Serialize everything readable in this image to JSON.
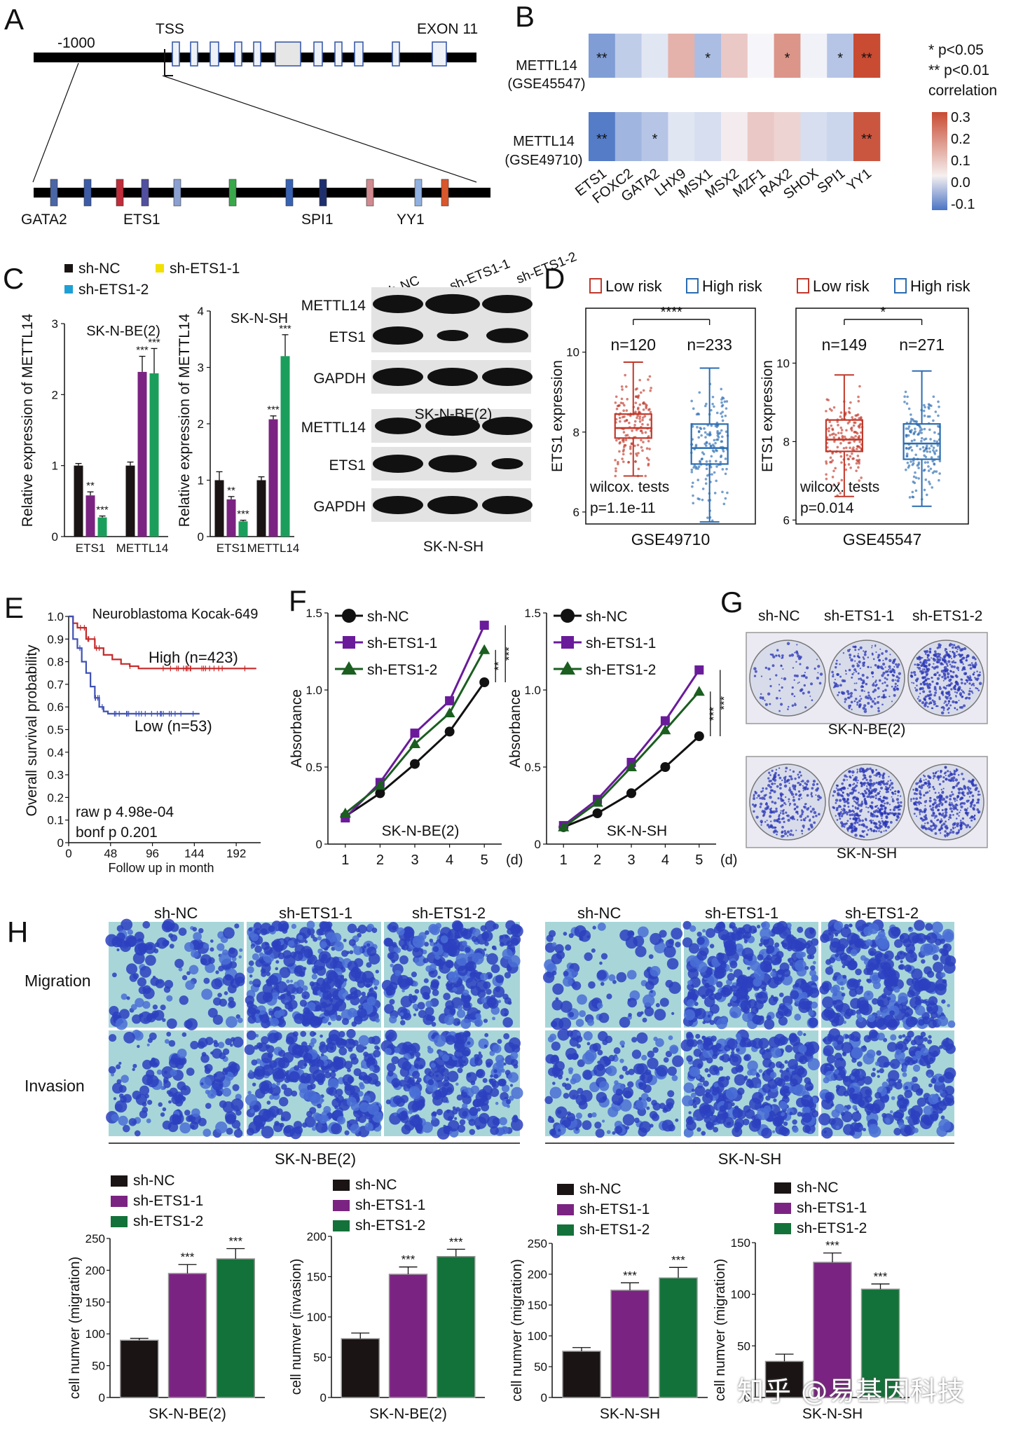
{
  "panels": {
    "A": {
      "label": "A",
      "pos_label": "-1000",
      "tss": "TSS",
      "exon": "EXON 11",
      "sites": [
        "GATA2",
        "ETS1",
        "SPI1",
        "YY1"
      ]
    },
    "B": {
      "label": "B",
      "rows": [
        "METTL14 (GSE45547)",
        "METTL14 (GSE49710)"
      ],
      "cols": [
        "ETS1",
        "FOXC2",
        "GATA2",
        "LHX9",
        "MSX1",
        "MSX2",
        "MZF1",
        "RAX2",
        "SHOX",
        "SPI1",
        "YY1"
      ],
      "values": [
        [
          -0.11,
          -0.05,
          -0.02,
          0.12,
          -0.07,
          0.08,
          0.0,
          0.17,
          -0.005,
          -0.06,
          0.3
        ],
        [
          -0.15,
          -0.08,
          -0.06,
          -0.02,
          -0.03,
          0.02,
          0.08,
          0.06,
          -0.03,
          -0.04,
          0.28
        ]
      ],
      "stars": [
        [
          "**",
          "",
          "",
          "",
          "*",
          "",
          "",
          "*",
          "",
          "*",
          "**"
        ],
        [
          "**",
          "",
          "*",
          "",
          "",
          "",
          "",
          "",
          "",
          "",
          "**"
        ]
      ],
      "legend": [
        "*  p<0.05",
        "** p<0.01",
        "correlation"
      ],
      "scale_ticks": [
        "0.3",
        "0.2",
        "0.1",
        "0.0",
        "-0.1"
      ]
    },
    "C": {
      "label": "C",
      "legend": [
        "sh-NC",
        "sh-ETS1-1",
        "sh-ETS1-2"
      ],
      "ylabel": "Relative expression of METTL14",
      "blot_lanes": [
        "sh-NC",
        "sh-ETS1-1",
        "sh-ETS1-2"
      ],
      "blot_rows": [
        "METTL14",
        "ETS1",
        "GAPDH",
        "METTL14",
        "ETS1",
        "GAPDH"
      ],
      "blot_cells": [
        "SK-N-BE(2)",
        "SK-N-SH"
      ]
    },
    "D": {
      "label": "D",
      "legend": [
        "Low risk",
        "High risk"
      ],
      "ylabel": "ETS1 expression",
      "test": "wilcox. tests"
    },
    "E": {
      "label": "E"
    },
    "F": {
      "label": "F"
    },
    "G": {
      "label": "G",
      "headers": [
        "sh-NC",
        "sh-ETS1-1",
        "sh-ETS1-2"
      ],
      "cells": [
        "SK-N-BE(2)",
        "SK-N-SH"
      ]
    },
    "H": {
      "label": "H",
      "headers": [
        "sh-NC",
        "sh-ETS1-1",
        "sh-ETS1-2"
      ],
      "rows": [
        "Migration",
        "Invasion"
      ],
      "cells": [
        "SK-N-BE(2)",
        "SK-N-SH"
      ]
    }
  },
  "colors": {
    "nc": "#1a1414",
    "ets1_1": "#7b2382",
    "ets1_2": "#137239",
    "ets1_2_c": "#1b9e5b",
    "low_risk": "#c0392b",
    "high_risk": "#2b6cb0",
    "km_high": "#c62828",
    "km_low": "#3f51b5",
    "line_nc": "#111111",
    "line_1": "#6a1b9a",
    "line_2": "#1b5e20",
    "heat_neg": "#4a74c4",
    "heat_pos": "#c84b32",
    "crystal": "#2a35b5",
    "well_bg": "#d8dcea"
  },
  "chart_data": [
    {
      "id": "C-left",
      "type": "bar",
      "title": "SK-N-BE(2)",
      "ylabel": "Relative expression of METTL14",
      "categories": [
        "ETS1",
        "METTL14"
      ],
      "series": [
        {
          "name": "sh-NC",
          "values": [
            1.0,
            1.0
          ],
          "err": [
            0.03,
            0.05
          ]
        },
        {
          "name": "sh-ETS1-1",
          "values": [
            0.58,
            2.32
          ],
          "err": [
            0.05,
            0.22
          ]
        },
        {
          "name": "sh-ETS1-2",
          "values": [
            0.27,
            2.3
          ],
          "err": [
            0.02,
            0.35
          ]
        }
      ],
      "stars": [
        [
          "",
          "**",
          "***"
        ],
        [
          "",
          "***",
          "***"
        ]
      ],
      "ylim": [
        0,
        3
      ],
      "yticks": [
        "0",
        "1",
        "2",
        "3"
      ]
    },
    {
      "id": "C-right",
      "type": "bar",
      "title": "SK-N-SH",
      "ylabel": "Relative expression of METTL14",
      "categories": [
        "ETS1",
        "METTL14"
      ],
      "series": [
        {
          "name": "sh-NC",
          "values": [
            1.0,
            1.0
          ],
          "err": [
            0.15,
            0.06
          ]
        },
        {
          "name": "sh-ETS1-1",
          "values": [
            0.66,
            2.08
          ],
          "err": [
            0.05,
            0.06
          ]
        },
        {
          "name": "sh-ETS1-2",
          "values": [
            0.27,
            3.2
          ],
          "err": [
            0.02,
            0.38
          ]
        }
      ],
      "stars": [
        [
          "",
          "**",
          "***"
        ],
        [
          "",
          "***",
          "***"
        ]
      ],
      "ylim": [
        0,
        4
      ],
      "yticks": [
        "0",
        "1",
        "2",
        "3",
        "4"
      ]
    },
    {
      "id": "D-left",
      "type": "box",
      "xlabel": "GSE49710",
      "ylabel": "ETS1 expression",
      "groups": [
        {
          "name": "Low risk",
          "n": "n=120",
          "q1": 7.85,
          "median": 8.1,
          "q3": 8.45,
          "wlo": 6.9,
          "whi": 9.75
        },
        {
          "name": "High risk",
          "n": "n=233",
          "q1": 7.2,
          "median": 7.6,
          "q3": 8.2,
          "wlo": 5.75,
          "whi": 9.6
        }
      ],
      "ylim": [
        5.7,
        11.1
      ],
      "yticks": [
        "6",
        "8",
        "10"
      ],
      "sig": "****",
      "p": "p=1.1e-11"
    },
    {
      "id": "D-right",
      "type": "box",
      "xlabel": "GSE45547",
      "ylabel": "ETS1 expression",
      "groups": [
        {
          "name": "Low risk",
          "n": "n=149",
          "q1": 7.75,
          "median": 8.05,
          "q3": 8.55,
          "wlo": 6.6,
          "whi": 9.7
        },
        {
          "name": "High risk",
          "n": "n=271",
          "q1": 7.55,
          "median": 7.95,
          "q3": 8.45,
          "wlo": 6.35,
          "whi": 9.8
        }
      ],
      "ylim": [
        5.9,
        11.4
      ],
      "yticks": [
        "6",
        "8",
        "10"
      ],
      "sig": "*",
      "p": "p=0.014"
    },
    {
      "id": "E",
      "type": "line",
      "title": "Neuroblastoma Kocak-649",
      "ylabel": "Overall survival probability",
      "xlabel": "Follow up in month",
      "xticks": [
        "0",
        "48",
        "96",
        "144",
        "192"
      ],
      "yticks": [
        "0",
        "0.1",
        "0.2",
        "0.3",
        "0.4",
        "0.5",
        "0.6",
        "0.7",
        "0.8",
        "0.9",
        "1.0"
      ],
      "xlim": [
        0,
        220
      ],
      "ylim": [
        0,
        1
      ],
      "series": [
        {
          "name": "High (n=423)",
          "x": [
            0,
            5,
            10,
            20,
            30,
            40,
            50,
            60,
            70,
            80,
            90,
            100,
            120,
            150,
            180,
            200,
            215
          ],
          "y": [
            1.0,
            0.97,
            0.95,
            0.9,
            0.86,
            0.83,
            0.81,
            0.79,
            0.78,
            0.77,
            0.77,
            0.77,
            0.77,
            0.77,
            0.77,
            0.77,
            0.77
          ]
        },
        {
          "name": "Low (n=53)",
          "x": [
            0,
            5,
            10,
            15,
            20,
            25,
            30,
            35,
            40,
            45,
            50,
            60,
            80,
            100,
            120,
            140,
            150
          ],
          "y": [
            1.0,
            0.9,
            0.86,
            0.8,
            0.75,
            0.69,
            0.64,
            0.6,
            0.58,
            0.57,
            0.57,
            0.57,
            0.57,
            0.57,
            0.57,
            0.57,
            0.57
          ]
        }
      ],
      "stats": [
        "raw p 4.98e-04",
        "bonf p 0.201"
      ]
    },
    {
      "id": "F-left",
      "type": "line",
      "title": "SK-N-BE(2)",
      "ylabel": "Absorbance",
      "x": [
        1,
        2,
        3,
        4,
        5
      ],
      "xticks": [
        "1",
        "2",
        "3",
        "4",
        "5"
      ],
      "xunit": "(d)",
      "yticks": [
        "0",
        "0.5",
        "1.0",
        "1.5"
      ],
      "ylim": [
        0,
        1.5
      ],
      "series": [
        {
          "name": "sh-NC",
          "values": [
            0.18,
            0.33,
            0.52,
            0.73,
            1.05
          ]
        },
        {
          "name": "sh-ETS1-1",
          "values": [
            0.17,
            0.4,
            0.72,
            0.93,
            1.42
          ]
        },
        {
          "name": "sh-ETS1-2",
          "values": [
            0.2,
            0.38,
            0.65,
            0.85,
            1.26
          ]
        }
      ],
      "sig": [
        "**",
        "***"
      ]
    },
    {
      "id": "F-right",
      "type": "line",
      "title": "SK-N-SH",
      "ylabel": "Absorbance",
      "x": [
        1,
        2,
        3,
        4,
        5
      ],
      "xticks": [
        "1",
        "2",
        "3",
        "4",
        "5"
      ],
      "xunit": "(d)",
      "yticks": [
        "0",
        "0.5",
        "1.0",
        "1.5"
      ],
      "ylim": [
        0,
        1.5
      ],
      "series": [
        {
          "name": "sh-NC",
          "values": [
            0.11,
            0.2,
            0.33,
            0.5,
            0.7
          ]
        },
        {
          "name": "sh-ETS1-1",
          "values": [
            0.12,
            0.29,
            0.53,
            0.8,
            1.13
          ]
        },
        {
          "name": "sh-ETS1-2",
          "values": [
            0.11,
            0.27,
            0.5,
            0.74,
            0.99
          ]
        }
      ],
      "sig": [
        "***",
        "***"
      ]
    },
    {
      "id": "H-1",
      "type": "bar",
      "xlabel": "SK-N-BE(2)",
      "ylabel": "cell numver (migration)",
      "categories": [
        "sh-NC",
        "sh-ETS1-1",
        "sh-ETS1-2"
      ],
      "values": [
        90,
        195,
        218
      ],
      "err": [
        3,
        14,
        16
      ],
      "stars": [
        "",
        "***",
        "***"
      ],
      "ylim": [
        0,
        250
      ],
      "yticks": [
        "0",
        "50",
        "100",
        "150",
        "200",
        "250"
      ]
    },
    {
      "id": "H-2",
      "type": "bar",
      "xlabel": "SK-N-BE(2)",
      "ylabel": "cell numver (invasion)",
      "categories": [
        "sh-NC",
        "sh-ETS1-1",
        "sh-ETS1-2"
      ],
      "values": [
        73,
        153,
        175
      ],
      "err": [
        7,
        9,
        9
      ],
      "stars": [
        "",
        "***",
        "***"
      ],
      "ylim": [
        0,
        200
      ],
      "yticks": [
        "0",
        "50",
        "100",
        "150",
        "200"
      ]
    },
    {
      "id": "H-3",
      "type": "bar",
      "xlabel": "SK-N-SH",
      "ylabel": "cell numver (migration)",
      "categories": [
        "sh-NC",
        "sh-ETS1-1",
        "sh-ETS1-2"
      ],
      "values": [
        75,
        174,
        194
      ],
      "err": [
        6,
        12,
        17
      ],
      "stars": [
        "",
        "***",
        "***"
      ],
      "ylim": [
        0,
        250
      ],
      "yticks": [
        "0",
        "50",
        "100",
        "150",
        "200",
        "250"
      ]
    },
    {
      "id": "H-4",
      "type": "bar",
      "xlabel": "SK-N-SH",
      "ylabel": "cell numver (migration)",
      "categories": [
        "sh-NC",
        "sh-ETS1-1",
        "sh-ETS1-2"
      ],
      "values": [
        35,
        131,
        105
      ],
      "err": [
        7,
        9,
        5
      ],
      "stars": [
        "",
        "***",
        "***"
      ],
      "ylim": [
        0,
        150
      ],
      "yticks": [
        "0",
        "50",
        "100",
        "150"
      ]
    }
  ],
  "watermark": "知乎 @易基因科技"
}
